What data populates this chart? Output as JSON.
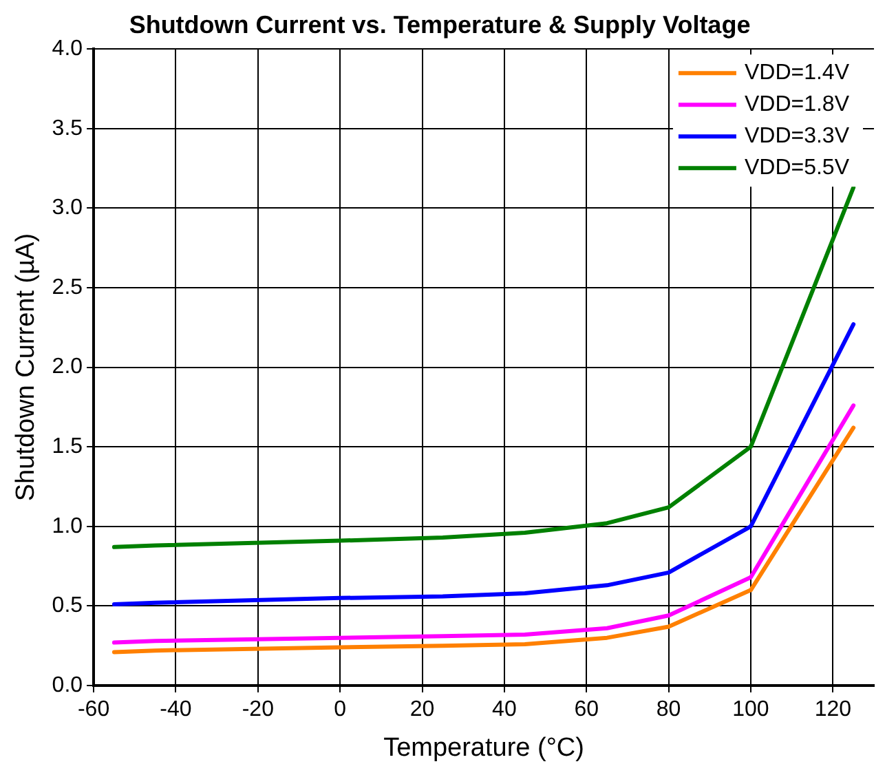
{
  "chart_data": {
    "type": "line",
    "title": "Shutdown Current vs. Temperature & Supply Voltage",
    "xlabel": "Temperature (°C)",
    "ylabel": "Shutdown Current (µA)",
    "x": [
      -55,
      -45,
      0,
      25,
      45,
      65,
      80,
      100,
      125
    ],
    "series": [
      {
        "name": "VDD=1.4V",
        "color": "#ff8000",
        "values": [
          0.21,
          0.22,
          0.24,
          0.25,
          0.26,
          0.3,
          0.37,
          0.6,
          1.62
        ]
      },
      {
        "name": "VDD=1.8V",
        "color": "#ff00ff",
        "values": [
          0.27,
          0.28,
          0.3,
          0.31,
          0.32,
          0.36,
          0.44,
          0.68,
          1.76
        ]
      },
      {
        "name": "VDD=3.3V",
        "color": "#0000ff",
        "values": [
          0.51,
          0.52,
          0.55,
          0.56,
          0.58,
          0.63,
          0.71,
          1.0,
          2.27
        ]
      },
      {
        "name": "VDD=5.5V",
        "color": "#008000",
        "values": [
          0.87,
          0.88,
          0.91,
          0.93,
          0.96,
          1.02,
          1.12,
          1.5,
          3.13
        ]
      }
    ],
    "xlim": [
      -60,
      130
    ],
    "xticks": [
      -60,
      -40,
      -20,
      0,
      20,
      40,
      60,
      80,
      100,
      120
    ],
    "ylim": [
      0,
      4
    ],
    "yticks": [
      {
        "value": 0,
        "label": "0.0"
      },
      {
        "value": 0.5,
        "label": "0.5"
      },
      {
        "value": 1,
        "label": "1.0"
      },
      {
        "value": 1.5,
        "label": "1.5"
      },
      {
        "value": 2,
        "label": "2.0"
      },
      {
        "value": 2.5,
        "label": "2.5"
      },
      {
        "value": 3,
        "label": "3.0"
      },
      {
        "value": 3.5,
        "label": "3.5"
      },
      {
        "value": 4,
        "label": "4.0"
      }
    ],
    "grid": true,
    "legend": "top right",
    "marker": "none",
    "line_style": "solid"
  }
}
